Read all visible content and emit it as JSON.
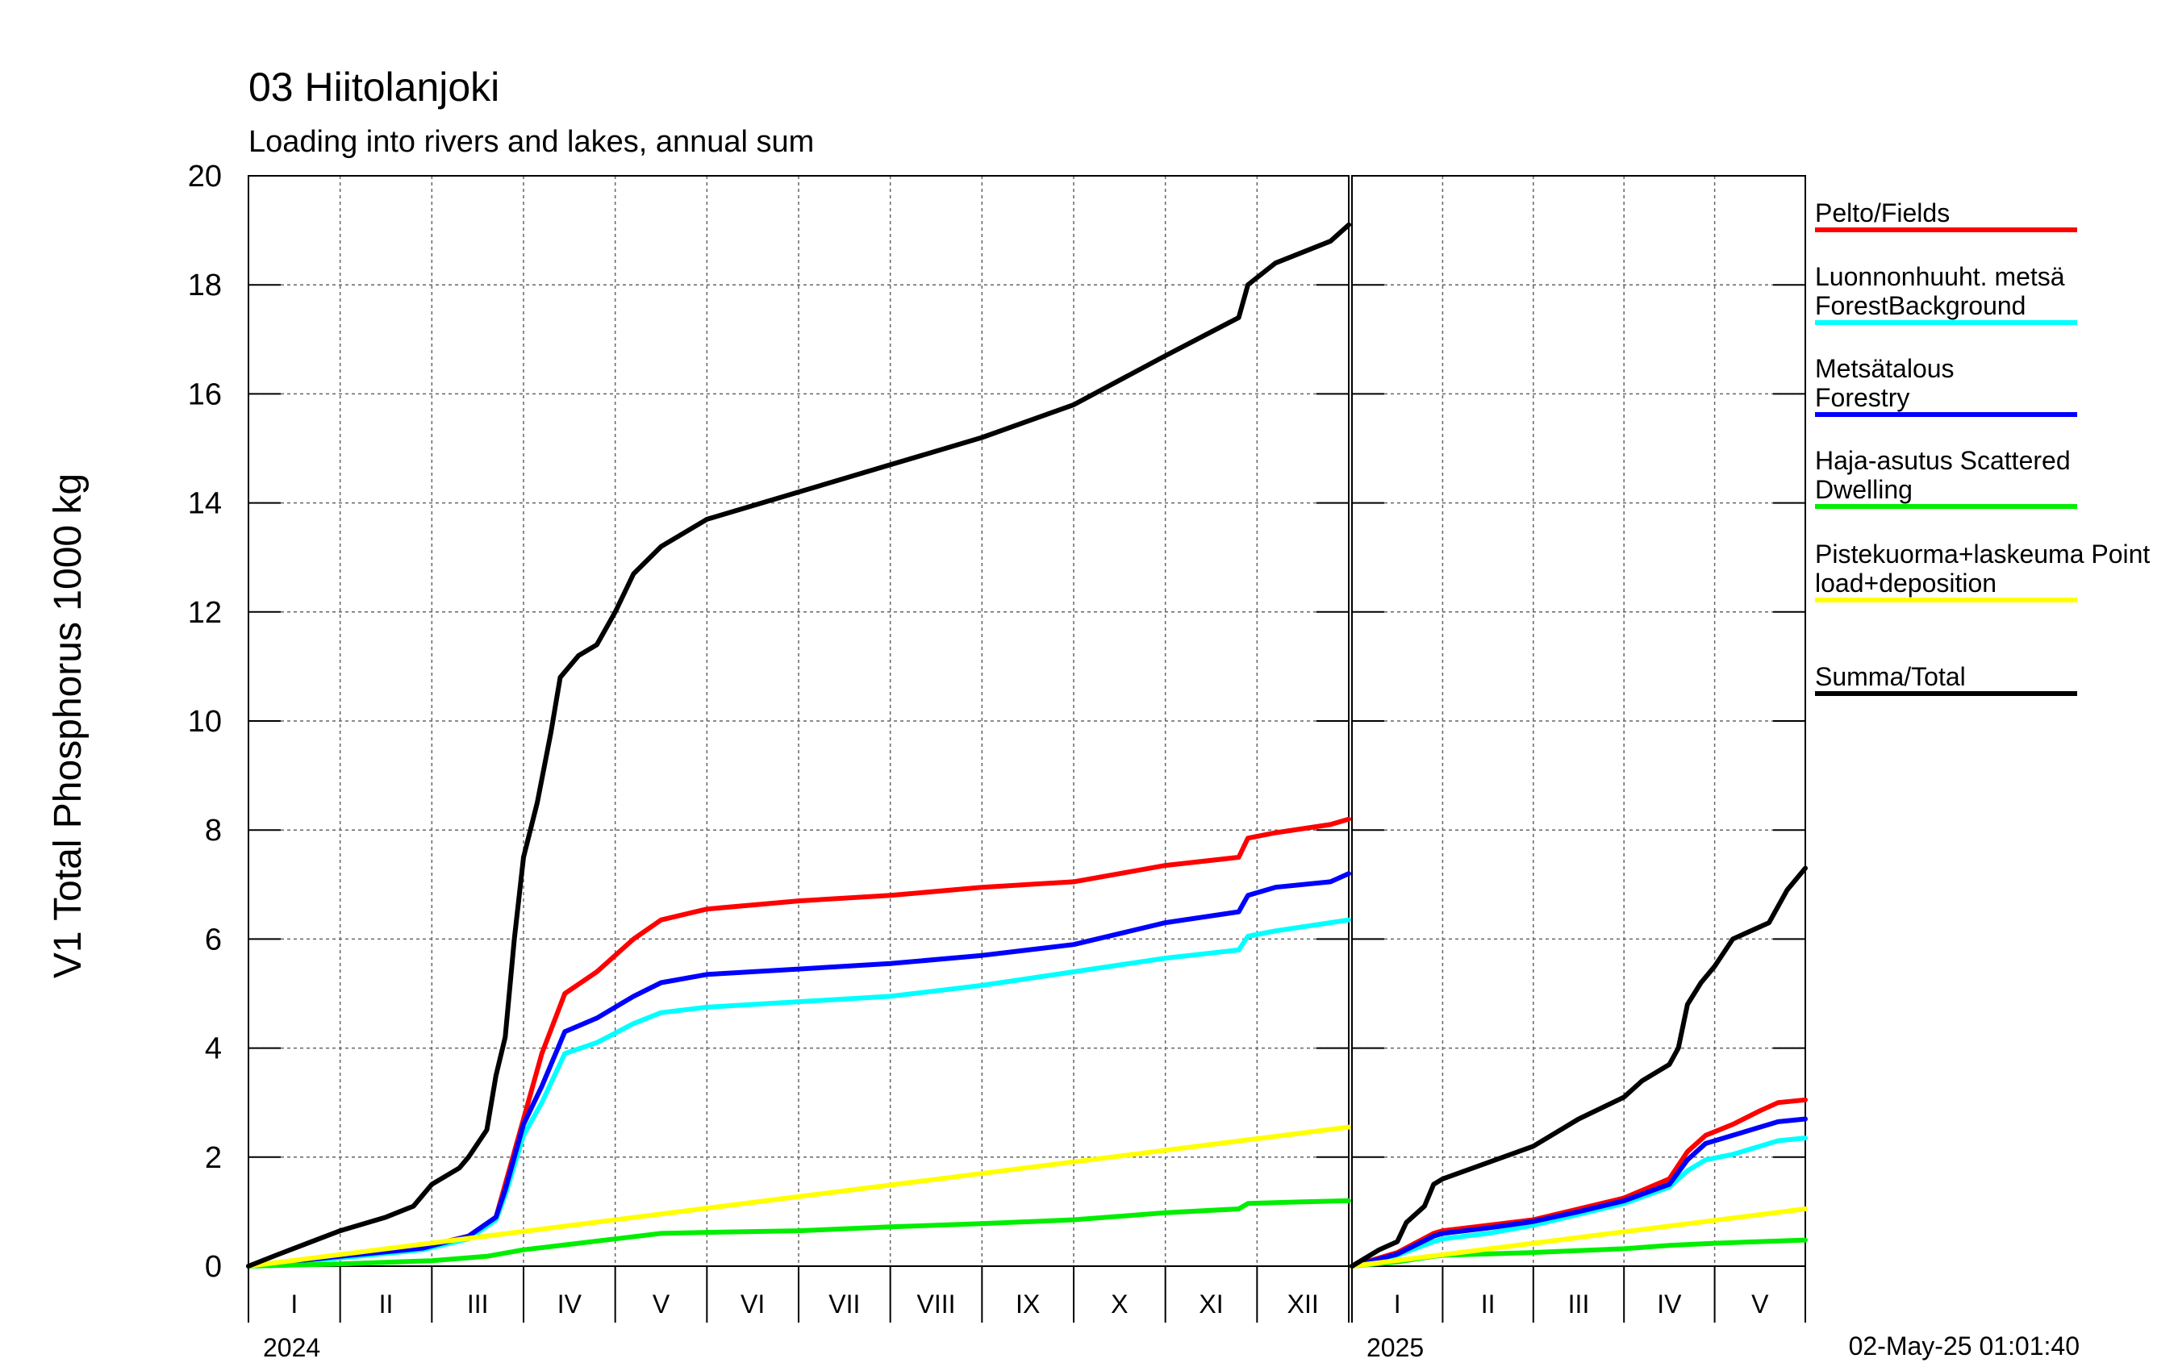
{
  "header": {
    "title": "03 Hiitolanjoki",
    "subtitle": "Loading into rivers and lakes, annual sum"
  },
  "timestamp": "02-May-25 01:01:40",
  "chart_data": {
    "type": "line",
    "ylabel": "V1 Total Phosphorus 1000 kg",
    "ylim": [
      0,
      20
    ],
    "yticks": [
      0,
      2,
      4,
      6,
      8,
      10,
      12,
      14,
      16,
      18,
      20
    ],
    "grid": true,
    "legend_placement": "right",
    "panels": [
      {
        "year": "2024",
        "months": [
          "I",
          "II",
          "III",
          "IV",
          "V",
          "VI",
          "VII",
          "VIII",
          "IX",
          "X",
          "XI",
          "XII"
        ],
        "x_unit": "month",
        "x_range": [
          0,
          12
        ],
        "series": [
          {
            "name": "Pelto/Fields",
            "color": "#ff0000",
            "points": [
              [
                0,
                0
              ],
              [
                1,
                0.2
              ],
              [
                1.9,
                0.35
              ],
              [
                2.4,
                0.55
              ],
              [
                2.7,
                0.9
              ],
              [
                2.8,
                1.5
              ],
              [
                3.0,
                2.7
              ],
              [
                3.2,
                3.9
              ],
              [
                3.45,
                5.0
              ],
              [
                3.8,
                5.4
              ],
              [
                4.2,
                6.0
              ],
              [
                4.5,
                6.35
              ],
              [
                5,
                6.55
              ],
              [
                6,
                6.7
              ],
              [
                7,
                6.8
              ],
              [
                8,
                6.95
              ],
              [
                9,
                7.05
              ],
              [
                10,
                7.35
              ],
              [
                10.8,
                7.5
              ],
              [
                10.9,
                7.85
              ],
              [
                11.2,
                7.95
              ],
              [
                11.8,
                8.1
              ],
              [
                12,
                8.2
              ]
            ]
          },
          {
            "name": "Luonnonhuuht. metsä ForestBackground",
            "color": "#00ffff",
            "points": [
              [
                0,
                0
              ],
              [
                1,
                0.15
              ],
              [
                1.9,
                0.3
              ],
              [
                2.4,
                0.5
              ],
              [
                2.7,
                0.85
              ],
              [
                2.8,
                1.3
              ],
              [
                3.0,
                2.4
              ],
              [
                3.2,
                3.0
              ],
              [
                3.45,
                3.9
              ],
              [
                3.8,
                4.1
              ],
              [
                4.2,
                4.45
              ],
              [
                4.5,
                4.65
              ],
              [
                5,
                4.75
              ],
              [
                6,
                4.85
              ],
              [
                7,
                4.95
              ],
              [
                8,
                5.15
              ],
              [
                9,
                5.4
              ],
              [
                10,
                5.65
              ],
              [
                10.8,
                5.8
              ],
              [
                10.9,
                6.05
              ],
              [
                11.2,
                6.15
              ],
              [
                11.8,
                6.3
              ],
              [
                12,
                6.35
              ]
            ]
          },
          {
            "name": "Metsätalous Forestry",
            "color": "#0000ff",
            "points": [
              [
                0,
                0
              ],
              [
                1,
                0.18
              ],
              [
                1.9,
                0.33
              ],
              [
                2.4,
                0.55
              ],
              [
                2.7,
                0.9
              ],
              [
                2.8,
                1.4
              ],
              [
                3.0,
                2.6
              ],
              [
                3.2,
                3.3
              ],
              [
                3.45,
                4.3
              ],
              [
                3.8,
                4.55
              ],
              [
                4.2,
                4.95
              ],
              [
                4.5,
                5.2
              ],
              [
                5,
                5.35
              ],
              [
                6,
                5.45
              ],
              [
                7,
                5.55
              ],
              [
                8,
                5.7
              ],
              [
                9,
                5.9
              ],
              [
                10,
                6.3
              ],
              [
                10.8,
                6.5
              ],
              [
                10.9,
                6.8
              ],
              [
                11.2,
                6.95
              ],
              [
                11.8,
                7.05
              ],
              [
                12,
                7.2
              ]
            ]
          },
          {
            "name": "Haja-asutus Scattered Dwelling",
            "color": "#00ee00",
            "points": [
              [
                0,
                0
              ],
              [
                1,
                0.04
              ],
              [
                2,
                0.1
              ],
              [
                2.6,
                0.18
              ],
              [
                3.0,
                0.3
              ],
              [
                3.5,
                0.4
              ],
              [
                4,
                0.5
              ],
              [
                4.5,
                0.6
              ],
              [
                5,
                0.62
              ],
              [
                6,
                0.65
              ],
              [
                7,
                0.72
              ],
              [
                8,
                0.78
              ],
              [
                9,
                0.85
              ],
              [
                10,
                0.98
              ],
              [
                10.8,
                1.05
              ],
              [
                10.9,
                1.15
              ],
              [
                11.5,
                1.18
              ],
              [
                12,
                1.2
              ]
            ]
          },
          {
            "name": "Pistekuorma+laskeuma Point load+deposition",
            "color": "#ffff00",
            "points": [
              [
                0,
                0
              ],
              [
                12,
                2.55
              ]
            ]
          },
          {
            "name": "Summa/Total",
            "color": "#000000",
            "points": [
              [
                0,
                0
              ],
              [
                0.3,
                0.2
              ],
              [
                1,
                0.65
              ],
              [
                1.5,
                0.9
              ],
              [
                1.8,
                1.1
              ],
              [
                2,
                1.5
              ],
              [
                2.3,
                1.8
              ],
              [
                2.4,
                2.0
              ],
              [
                2.6,
                2.5
              ],
              [
                2.7,
                3.5
              ],
              [
                2.8,
                4.2
              ],
              [
                2.9,
                6.0
              ],
              [
                3.0,
                7.5
              ],
              [
                3.15,
                8.5
              ],
              [
                3.3,
                9.8
              ],
              [
                3.4,
                10.8
              ],
              [
                3.6,
                11.2
              ],
              [
                3.8,
                11.4
              ],
              [
                4.0,
                12.0
              ],
              [
                4.2,
                12.7
              ],
              [
                4.5,
                13.2
              ],
              [
                5,
                13.7
              ],
              [
                6,
                14.2
              ],
              [
                7,
                14.7
              ],
              [
                8,
                15.2
              ],
              [
                9,
                15.8
              ],
              [
                10,
                16.7
              ],
              [
                10.8,
                17.4
              ],
              [
                10.9,
                18.0
              ],
              [
                11.2,
                18.4
              ],
              [
                11.8,
                18.8
              ],
              [
                12,
                19.1
              ]
            ]
          }
        ]
      },
      {
        "year": "2025",
        "months": [
          "I",
          "II",
          "III",
          "IV",
          "V"
        ],
        "x_unit": "month",
        "x_range": [
          0,
          5
        ],
        "series": [
          {
            "name": "Pelto/Fields",
            "color": "#ff0000",
            "points": [
              [
                0,
                0
              ],
              [
                0.5,
                0.25
              ],
              [
                0.9,
                0.6
              ],
              [
                1,
                0.65
              ],
              [
                1.5,
                0.75
              ],
              [
                2,
                0.85
              ],
              [
                2.5,
                1.05
              ],
              [
                3,
                1.25
              ],
              [
                3.5,
                1.6
              ],
              [
                3.7,
                2.1
              ],
              [
                3.9,
                2.4
              ],
              [
                4.2,
                2.6
              ],
              [
                4.5,
                2.85
              ],
              [
                4.7,
                3.0
              ],
              [
                5,
                3.05
              ]
            ]
          },
          {
            "name": "Luonnonhuuht. metsä ForestBackground",
            "color": "#00ffff",
            "points": [
              [
                0,
                0
              ],
              [
                0.5,
                0.2
              ],
              [
                0.9,
                0.45
              ],
              [
                1,
                0.5
              ],
              [
                1.5,
                0.6
              ],
              [
                2,
                0.75
              ],
              [
                2.5,
                0.95
              ],
              [
                3,
                1.15
              ],
              [
                3.5,
                1.45
              ],
              [
                3.7,
                1.75
              ],
              [
                3.9,
                1.95
              ],
              [
                4.2,
                2.05
              ],
              [
                4.5,
                2.2
              ],
              [
                4.7,
                2.3
              ],
              [
                5,
                2.35
              ]
            ]
          },
          {
            "name": "Metsätalous Forestry",
            "color": "#0000ff",
            "points": [
              [
                0,
                0
              ],
              [
                0.5,
                0.22
              ],
              [
                0.9,
                0.55
              ],
              [
                1,
                0.6
              ],
              [
                1.5,
                0.7
              ],
              [
                2,
                0.82
              ],
              [
                2.5,
                1.0
              ],
              [
                3,
                1.2
              ],
              [
                3.5,
                1.5
              ],
              [
                3.7,
                1.95
              ],
              [
                3.9,
                2.25
              ],
              [
                4.2,
                2.4
              ],
              [
                4.5,
                2.55
              ],
              [
                4.7,
                2.65
              ],
              [
                5,
                2.7
              ]
            ]
          },
          {
            "name": "Haja-asutus Scattered Dwelling",
            "color": "#00ee00",
            "points": [
              [
                0,
                0
              ],
              [
                0.5,
                0.08
              ],
              [
                0.9,
                0.18
              ],
              [
                1,
                0.2
              ],
              [
                2,
                0.25
              ],
              [
                3,
                0.32
              ],
              [
                3.5,
                0.38
              ],
              [
                4,
                0.42
              ],
              [
                5,
                0.48
              ]
            ]
          },
          {
            "name": "Pistekuorma+laskeuma Point load+deposition",
            "color": "#ffff00",
            "points": [
              [
                0,
                0
              ],
              [
                5,
                1.05
              ]
            ]
          },
          {
            "name": "Summa/Total",
            "color": "#000000",
            "points": [
              [
                0,
                0
              ],
              [
                0.3,
                0.3
              ],
              [
                0.5,
                0.45
              ],
              [
                0.6,
                0.8
              ],
              [
                0.8,
                1.1
              ],
              [
                0.9,
                1.5
              ],
              [
                1,
                1.6
              ],
              [
                1.5,
                1.9
              ],
              [
                2,
                2.2
              ],
              [
                2.5,
                2.7
              ],
              [
                3,
                3.1
              ],
              [
                3.2,
                3.4
              ],
              [
                3.5,
                3.7
              ],
              [
                3.6,
                4.0
              ],
              [
                3.7,
                4.8
              ],
              [
                3.85,
                5.2
              ],
              [
                4.0,
                5.5
              ],
              [
                4.2,
                6.0
              ],
              [
                4.6,
                6.3
              ],
              [
                4.8,
                6.9
              ],
              [
                5,
                7.3
              ]
            ]
          }
        ]
      }
    ]
  }
}
